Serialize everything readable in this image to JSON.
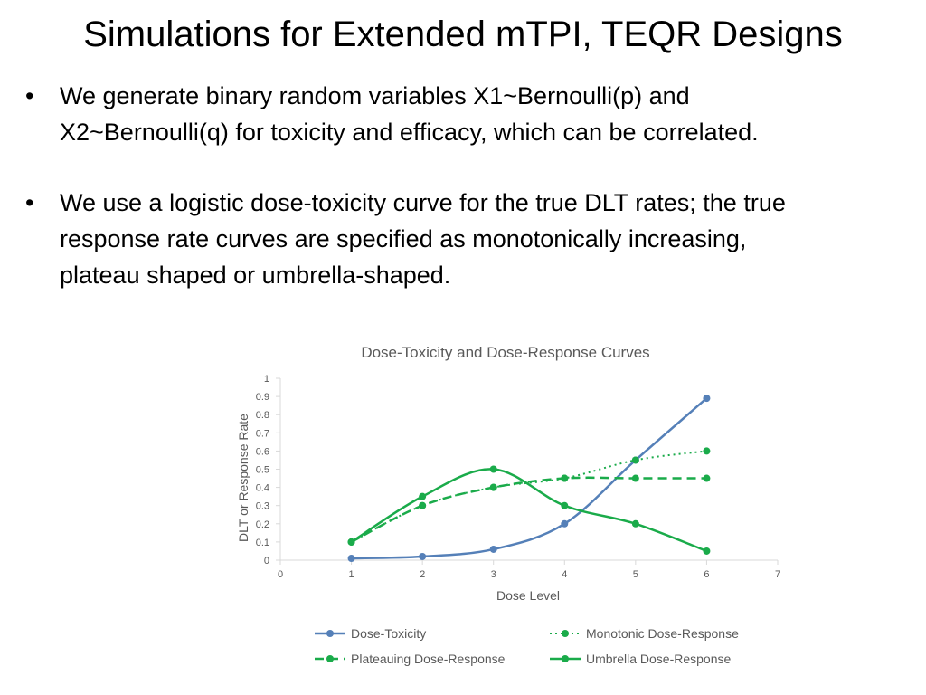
{
  "slide": {
    "title": "Simulations for Extended mTPI, TEQR Designs",
    "bullets": [
      {
        "lines": [
          "We generate binary random variables X1~Bernoulli(p) and",
          "X2~Bernoulli(q) for toxicity and efficacy, which can be correlated."
        ]
      },
      {
        "lines": [
          "We use a logistic dose-toxicity curve for the true DLT rates; the true",
          "response rate curves are specified as monotonically increasing,",
          "plateau shaped or umbrella-shaped."
        ]
      }
    ]
  },
  "chart_data": {
    "type": "line",
    "title": "Dose-Toxicity and Dose-Response Curves",
    "xlabel": "Dose Level",
    "ylabel": "DLT or Response Rate",
    "xlim": [
      0,
      7
    ],
    "ylim": [
      0,
      1
    ],
    "xticks": [
      0,
      1,
      2,
      3,
      4,
      5,
      6,
      7
    ],
    "yticks": [
      0,
      0.1,
      0.2,
      0.3,
      0.4,
      0.5,
      0.6,
      0.7,
      0.8,
      0.9,
      1
    ],
    "grid": false,
    "legend_position": "bottom",
    "x": [
      1,
      2,
      3,
      4,
      5,
      6
    ],
    "series": [
      {
        "name": "Dose-Toxicity",
        "values": [
          0.01,
          0.02,
          0.06,
          0.2,
          0.55,
          0.89
        ],
        "color": "#5580b8",
        "dash": "solid"
      },
      {
        "name": "Monotonic Dose-Response",
        "values": [
          0.1,
          0.3,
          0.4,
          0.45,
          0.55,
          0.6
        ],
        "color": "#1aab4a",
        "dash": "dotted"
      },
      {
        "name": "Plateauing Dose-Response",
        "values": [
          0.1,
          0.3,
          0.4,
          0.45,
          0.45,
          0.45
        ],
        "color": "#1aab4a",
        "dash": "dashed"
      },
      {
        "name": "Umbrella Dose-Response",
        "values": [
          0.1,
          0.35,
          0.5,
          0.3,
          0.2,
          0.05
        ],
        "color": "#1aab4a",
        "dash": "solid"
      }
    ]
  }
}
